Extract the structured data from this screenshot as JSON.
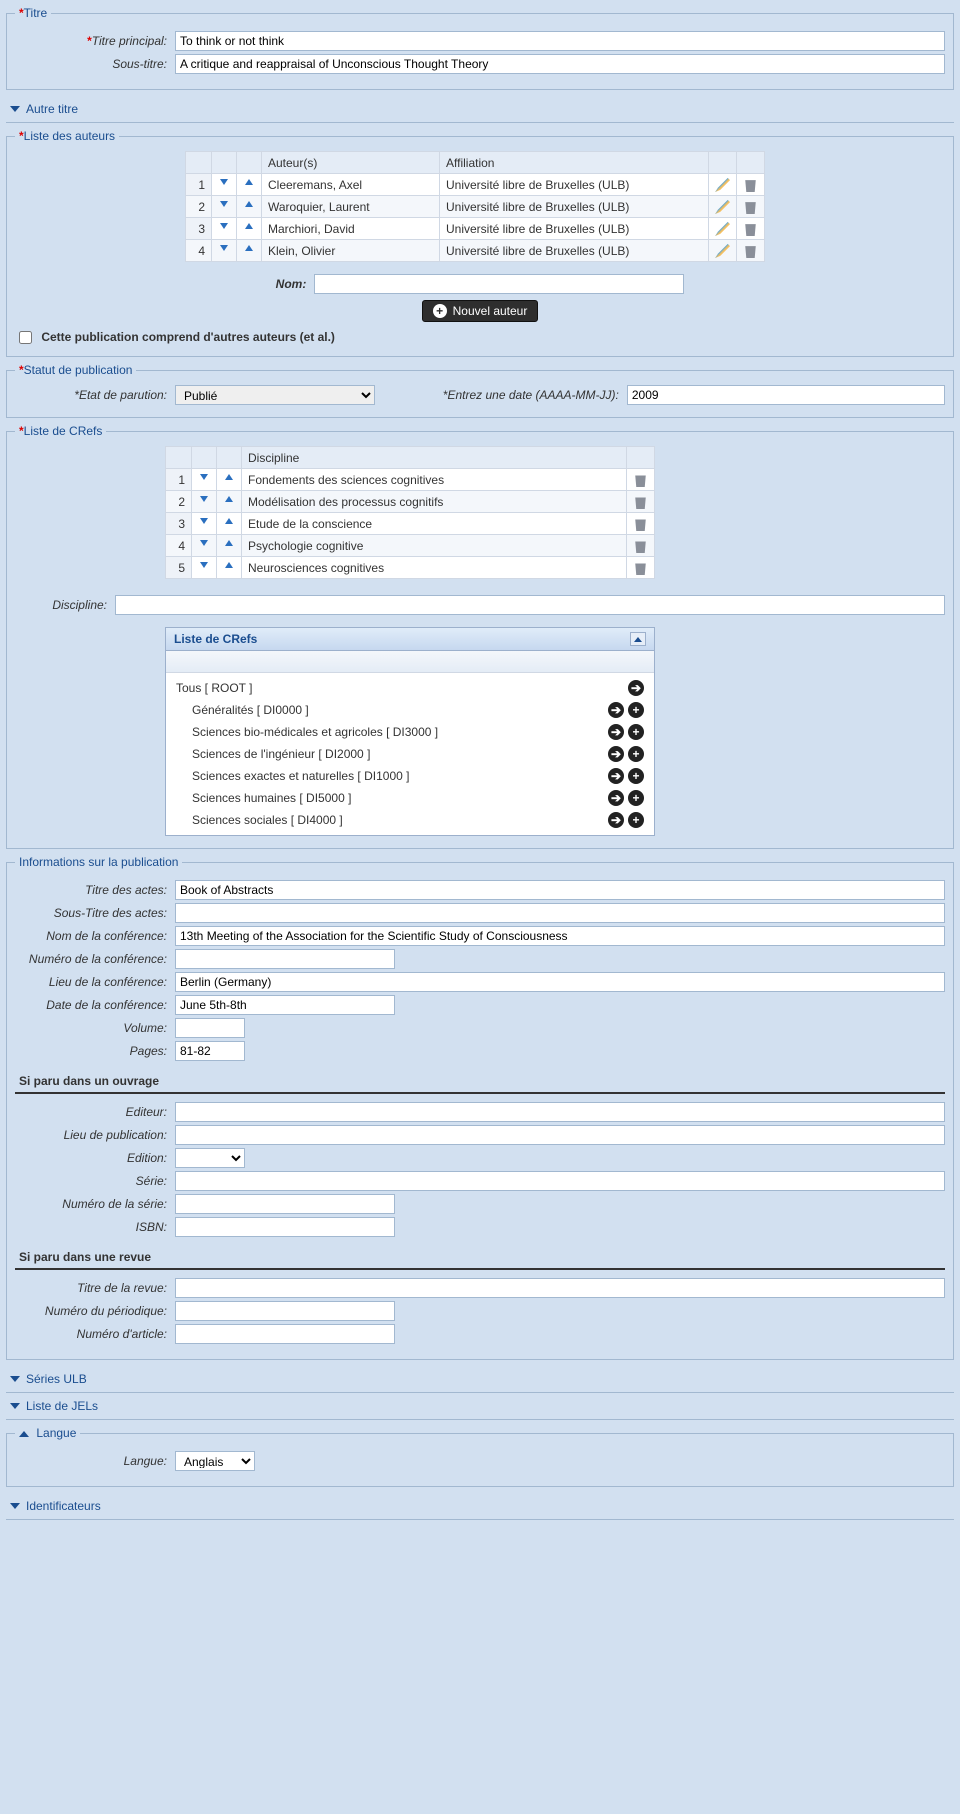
{
  "titre": {
    "legend": "Titre",
    "principal_label": "Titre principal:",
    "principal_value": "To think or not think",
    "sous_label": "Sous-titre:",
    "sous_value": "A critique and reappraisal of Unconscious Thought Theory"
  },
  "autre_titre": {
    "label": "Autre titre"
  },
  "auteurs": {
    "legend": "Liste des auteurs",
    "col_author": "Auteur(s)",
    "col_affil": "Affiliation",
    "rows": [
      {
        "idx": "1",
        "name": "Cleeremans, Axel",
        "affil": "Université libre de Bruxelles (ULB)"
      },
      {
        "idx": "2",
        "name": "Waroquier, Laurent",
        "affil": "Université libre de Bruxelles (ULB)"
      },
      {
        "idx": "3",
        "name": "Marchiori, David",
        "affil": "Université libre de Bruxelles (ULB)"
      },
      {
        "idx": "4",
        "name": "Klein, Olivier",
        "affil": "Université libre de Bruxelles (ULB)"
      }
    ],
    "nom_label": "Nom:",
    "nouvel_btn": "Nouvel auteur",
    "etal_label": "Cette publication comprend d'autres auteurs (et al.)"
  },
  "statut": {
    "legend": "Statut de publication",
    "etat_label": "Etat de parution:",
    "etat_value": "Publié",
    "date_label": "Entrez une date (AAAA-MM-JJ):",
    "date_value": "2009"
  },
  "crefs": {
    "legend": "Liste de CRefs",
    "col_disc": "Discipline",
    "rows": [
      {
        "idx": "1",
        "label": "Fondements des sciences cognitives"
      },
      {
        "idx": "2",
        "label": "Modélisation des processus cognitifs"
      },
      {
        "idx": "3",
        "label": "Etude de la conscience"
      },
      {
        "idx": "4",
        "label": "Psychologie cognitive"
      },
      {
        "idx": "5",
        "label": "Neurosciences cognitives"
      }
    ],
    "discipline_label": "Discipline:",
    "panel_title": "Liste de CRefs",
    "tree": [
      {
        "label": "Tous [ ROOT ]",
        "child": false,
        "plus": false
      },
      {
        "label": "Généralités [ DI0000 ]",
        "child": true,
        "plus": true
      },
      {
        "label": "Sciences bio-médicales et agricoles [ DI3000 ]",
        "child": true,
        "plus": true
      },
      {
        "label": "Sciences de l'ingénieur [ DI2000 ]",
        "child": true,
        "plus": true
      },
      {
        "label": "Sciences exactes et naturelles [ DI1000 ]",
        "child": true,
        "plus": true
      },
      {
        "label": "Sciences humaines [ DI5000 ]",
        "child": true,
        "plus": true
      },
      {
        "label": "Sciences sociales [ DI4000 ]",
        "child": true,
        "plus": true
      }
    ]
  },
  "pubinfo": {
    "legend": "Informations sur la publication",
    "titre_actes_label": "Titre des actes:",
    "titre_actes_value": "Book of Abstracts",
    "sous_actes_label": "Sous-Titre des actes:",
    "sous_actes_value": "",
    "nom_conf_label": "Nom de la conférence:",
    "nom_conf_value": "13th Meeting of the Association for the Scientific Study of Consciousness",
    "num_conf_label": "Numéro de la conférence:",
    "num_conf_value": "",
    "lieu_conf_label": "Lieu de la conférence:",
    "lieu_conf_value": "Berlin (Germany)",
    "date_conf_label": "Date de la conférence:",
    "date_conf_value": "June 5th-8th",
    "volume_label": "Volume:",
    "volume_value": "",
    "pages_label": "Pages:",
    "pages_value": "81-82",
    "ouvrage_head": "Si paru dans un ouvrage",
    "editeur_label": "Editeur:",
    "lieu_pub_label": "Lieu de publication:",
    "edition_label": "Edition:",
    "serie_label": "Série:",
    "num_serie_label": "Numéro de la série:",
    "isbn_label": "ISBN:",
    "revue_head": "Si paru dans une revue",
    "titre_revue_label": "Titre de la revue:",
    "num_period_label": "Numéro du périodique:",
    "num_article_label": "Numéro d'article:"
  },
  "series_ulb": {
    "label": "Séries ULB"
  },
  "jels": {
    "label": "Liste de JELs"
  },
  "langue": {
    "legend": "Langue",
    "label": "Langue:",
    "value": "Anglais"
  },
  "identificateurs": {
    "label": "Identificateurs"
  }
}
